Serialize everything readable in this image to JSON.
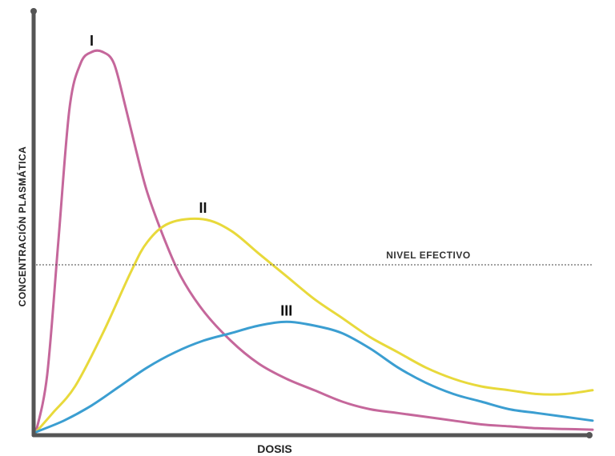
{
  "chart_data": {
    "type": "line",
    "title": "",
    "xlabel": "DOSIS",
    "ylabel": "CONCENTRACIÓN PLASMÁTICA",
    "xlim": [
      0,
      100
    ],
    "ylim": [
      0,
      100
    ],
    "grid": false,
    "reference_line": {
      "label": "NIVEL EFECTIVO",
      "y": 44,
      "style": "dotted"
    },
    "series": [
      {
        "name": "I",
        "color": "#c5679b",
        "points": [
          [
            0,
            0
          ],
          [
            2,
            15
          ],
          [
            4,
            50
          ],
          [
            6,
            85
          ],
          [
            8,
            97
          ],
          [
            10,
            100
          ],
          [
            12,
            100
          ],
          [
            14,
            97
          ],
          [
            16,
            86
          ],
          [
            18,
            74
          ],
          [
            20,
            63
          ],
          [
            23,
            51
          ],
          [
            26,
            41
          ],
          [
            30,
            32
          ],
          [
            35,
            24
          ],
          [
            40,
            18
          ],
          [
            45,
            14
          ],
          [
            50,
            11
          ],
          [
            55,
            8
          ],
          [
            60,
            6
          ],
          [
            65,
            5
          ],
          [
            70,
            4
          ],
          [
            75,
            3
          ],
          [
            80,
            2
          ],
          [
            85,
            1.5
          ],
          [
            90,
            1
          ],
          [
            95,
            0.8
          ],
          [
            100,
            0.6
          ]
        ]
      },
      {
        "name": "II",
        "color": "#e8d93b",
        "points": [
          [
            0,
            0
          ],
          [
            3,
            5
          ],
          [
            7,
            12
          ],
          [
            12,
            26
          ],
          [
            17,
            42
          ],
          [
            20,
            50
          ],
          [
            24,
            55
          ],
          [
            30,
            56
          ],
          [
            35,
            53
          ],
          [
            40,
            47
          ],
          [
            45,
            41
          ],
          [
            50,
            35
          ],
          [
            55,
            30
          ],
          [
            60,
            25
          ],
          [
            65,
            21
          ],
          [
            70,
            17
          ],
          [
            75,
            14
          ],
          [
            80,
            12
          ],
          [
            85,
            11
          ],
          [
            90,
            10
          ],
          [
            95,
            10
          ],
          [
            100,
            11
          ]
        ]
      },
      {
        "name": "III",
        "color": "#3b9ed1",
        "points": [
          [
            0,
            0
          ],
          [
            5,
            3
          ],
          [
            10,
            7
          ],
          [
            15,
            12
          ],
          [
            20,
            17
          ],
          [
            25,
            21
          ],
          [
            30,
            24
          ],
          [
            35,
            26
          ],
          [
            40,
            28
          ],
          [
            45,
            29
          ],
          [
            50,
            28
          ],
          [
            55,
            26
          ],
          [
            60,
            22
          ],
          [
            65,
            17
          ],
          [
            70,
            13
          ],
          [
            75,
            10
          ],
          [
            80,
            8
          ],
          [
            85,
            6
          ],
          [
            90,
            5
          ],
          [
            95,
            4
          ],
          [
            100,
            3
          ]
        ]
      }
    ]
  },
  "colors": {
    "axis": "#555555",
    "dotted_line": "#444444"
  }
}
